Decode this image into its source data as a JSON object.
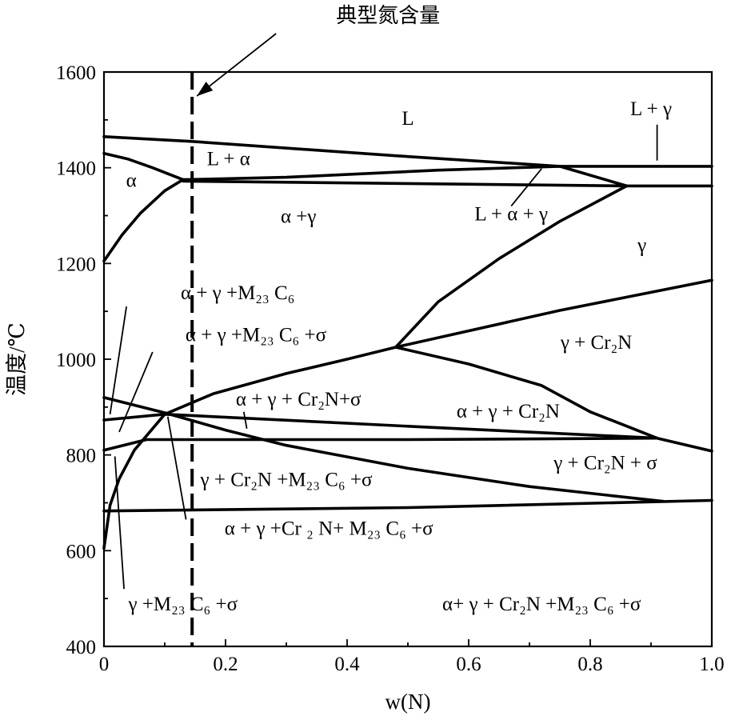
{
  "chart_data": {
    "type": "line",
    "title": "",
    "xlabel": "w(N)",
    "ylabel": "温度/℃",
    "xlim": [
      0,
      1.0
    ],
    "ylim": [
      400,
      1600
    ],
    "x_ticks": [
      "0",
      "0.2",
      "0.4",
      "0.6",
      "0.8",
      "1.0"
    ],
    "y_ticks": [
      "400",
      "600",
      "800",
      "1000",
      "1200",
      "1400",
      "1600"
    ],
    "grid": false,
    "marker": {
      "label": "典型氮含量",
      "x": 0.145
    },
    "series": [
      {
        "points": [
          [
            0,
            1465
          ],
          [
            0.145,
            1455
          ],
          [
            0.48,
            1425
          ],
          [
            0.75,
            1403
          ],
          [
            1.0,
            1403
          ]
        ]
      },
      {
        "points": [
          [
            0,
            1430
          ],
          [
            0.04,
            1418
          ],
          [
            0.08,
            1400
          ],
          [
            0.13,
            1375
          ]
        ]
      },
      {
        "points": [
          [
            0,
            1205
          ],
          [
            0.03,
            1260
          ],
          [
            0.06,
            1305
          ],
          [
            0.1,
            1352
          ],
          [
            0.13,
            1375
          ]
        ]
      },
      {
        "points": [
          [
            0.13,
            1375
          ],
          [
            0.3,
            1380
          ],
          [
            0.55,
            1395
          ],
          [
            0.75,
            1403
          ]
        ]
      },
      {
        "points": [
          [
            0.13,
            1372
          ],
          [
            0.5,
            1367
          ],
          [
            0.86,
            1362
          ],
          [
            1.0,
            1362
          ]
        ]
      },
      {
        "points": [
          [
            0.75,
            1403
          ],
          [
            0.86,
            1362
          ]
        ]
      },
      {
        "points": [
          [
            0.48,
            1025
          ],
          [
            0.55,
            1120
          ],
          [
            0.65,
            1210
          ],
          [
            0.75,
            1288
          ],
          [
            0.86,
            1362
          ]
        ]
      },
      {
        "points": [
          [
            0.48,
            1025
          ],
          [
            0.75,
            1102
          ],
          [
            1.0,
            1165
          ]
        ]
      },
      {
        "points": [
          [
            0.1,
            885
          ],
          [
            0.18,
            928
          ],
          [
            0.3,
            970
          ],
          [
            0.4,
            1000
          ],
          [
            0.48,
            1025
          ]
        ]
      },
      {
        "points": [
          [
            0,
            605
          ],
          [
            0.01,
            695
          ],
          [
            0.025,
            750
          ],
          [
            0.05,
            810
          ],
          [
            0.1,
            885
          ]
        ]
      },
      {
        "points": [
          [
            0.48,
            1025
          ],
          [
            0.6,
            990
          ],
          [
            0.72,
            945
          ],
          [
            0.8,
            890
          ],
          [
            0.91,
            835
          ],
          [
            1.0,
            808
          ]
        ]
      },
      {
        "points": [
          [
            0,
            920
          ],
          [
            0.1,
            888
          ],
          [
            0.2,
            852
          ],
          [
            0.3,
            820
          ],
          [
            0.5,
            772
          ],
          [
            0.7,
            734
          ],
          [
            0.92,
            703
          ]
        ]
      },
      {
        "points": [
          [
            0,
            873
          ],
          [
            0.1,
            885
          ],
          [
            0.5,
            860
          ],
          [
            0.91,
            835
          ]
        ]
      },
      {
        "points": [
          [
            0,
            810
          ],
          [
            0.07,
            832
          ],
          [
            0.5,
            832
          ],
          [
            0.91,
            835
          ]
        ]
      },
      {
        "points": [
          [
            0,
            683
          ],
          [
            0.5,
            690
          ],
          [
            1.0,
            705
          ]
        ]
      }
    ],
    "regions": [
      {
        "label": "L",
        "x": 0.5,
        "y": 1490
      },
      {
        "label": "L + γ",
        "x": 0.9,
        "y": 1510
      },
      {
        "label": "L + α",
        "x": 0.205,
        "y": 1405
      },
      {
        "label": "α",
        "x": 0.045,
        "y": 1360
      },
      {
        "label": "α +γ",
        "x": 0.32,
        "y": 1285
      },
      {
        "label": "L + α + γ",
        "x": 0.67,
        "y": 1290
      },
      {
        "label": "γ",
        "x": 0.885,
        "y": 1225
      },
      {
        "label": "α + γ +M₂₃ C₆",
        "x": 0.22,
        "y": 1125
      },
      {
        "label": "α + γ +M₂₃ C₆ +σ",
        "x": 0.25,
        "y": 1038
      },
      {
        "label": "γ + Cr₂N",
        "x": 0.81,
        "y": 1022
      },
      {
        "label": "α + γ + Cr₂N+σ",
        "x": 0.32,
        "y": 903
      },
      {
        "label": "α + γ + Cr₂N",
        "x": 0.665,
        "y": 878
      },
      {
        "label": "γ + Cr₂N + σ",
        "x": 0.825,
        "y": 770
      },
      {
        "label": "γ + Cr₂N +M₂₃ C₆ +σ",
        "x": 0.3,
        "y": 735
      },
      {
        "label": "α + γ +Cr ₂ N+ M₂₃ C₆ +σ",
        "x": 0.37,
        "y": 633
      },
      {
        "label": "γ +M₂₃ C₆ +σ",
        "x": 0.13,
        "y": 475
      },
      {
        "label": "α+ γ + Cr₂N +M₂₃ C₆ +σ",
        "x": 0.72,
        "y": 475
      }
    ],
    "leaders": [
      [
        [
          0.91,
          1490
        ],
        [
          0.91,
          1415
        ]
      ],
      [
        [
          0.67,
          1320
        ],
        [
          0.72,
          1398
        ]
      ],
      [
        [
          0.037,
          1110
        ],
        [
          0.01,
          885
        ]
      ],
      [
        [
          0.08,
          1015
        ],
        [
          0.025,
          848
        ]
      ],
      [
        [
          0.23,
          890
        ],
        [
          0.235,
          855
        ]
      ],
      [
        [
          0.105,
          880
        ],
        [
          0.135,
          665
        ]
      ],
      [
        [
          0.018,
          797
        ],
        [
          0.033,
          520
        ]
      ]
    ]
  }
}
